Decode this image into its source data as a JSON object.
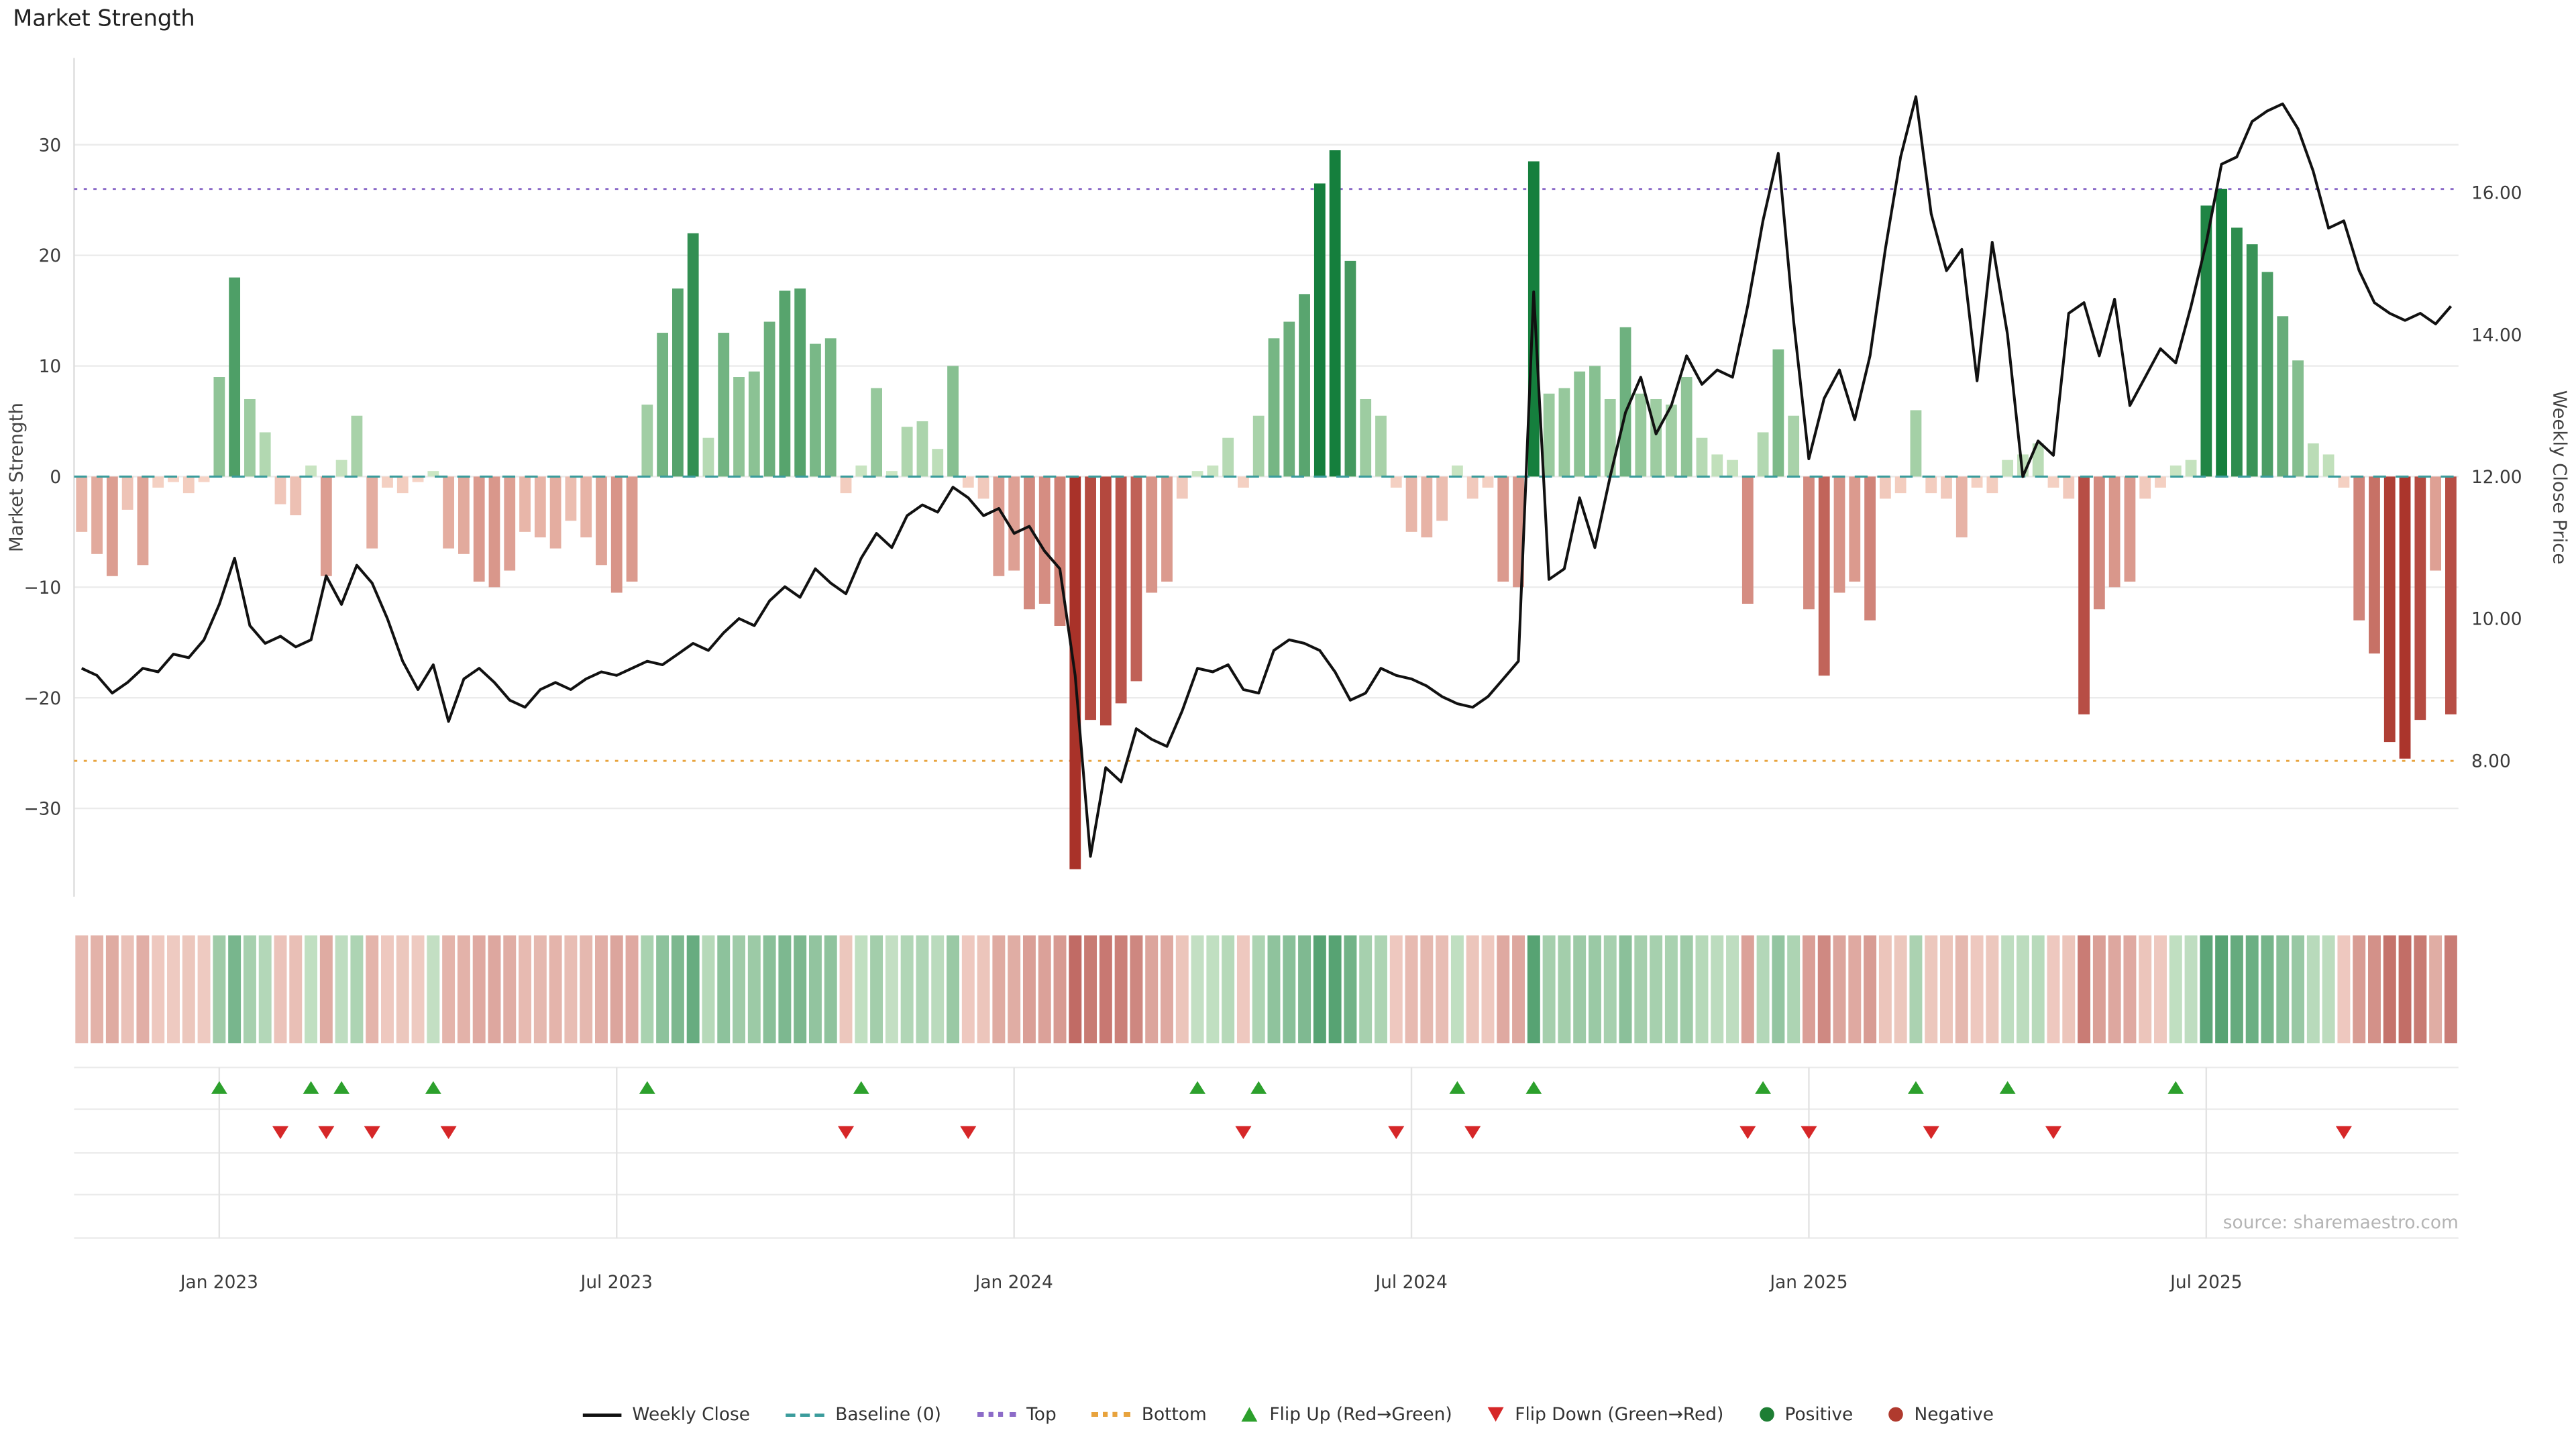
{
  "title": "Market Strength",
  "source": "source: sharemaestro.com",
  "colors": {
    "positive_light": "#cfe8c6",
    "positive_dark": "#157f3d",
    "negative_light": "#f7d6c8",
    "negative_dark": "#a93229",
    "line": "#111111",
    "baseline": "#3b9c9c",
    "top": "#8c6bc8",
    "bottom": "#e8a33d",
    "grid": "#ebebeb",
    "panel_grid": "#e3e3e3",
    "axis_text": "#3b3b3b",
    "source_text": "#b4b4b4",
    "flip_up": "#2ca02c",
    "flip_down": "#d62728"
  },
  "legend": {
    "items": [
      {
        "key": "weekly-close",
        "label": "Weekly Close",
        "swatch": "line",
        "color": "#111111"
      },
      {
        "key": "baseline",
        "label": "Baseline (0)",
        "swatch": "dashed",
        "color": "#3b9c9c"
      },
      {
        "key": "top",
        "label": "Top",
        "swatch": "dotted",
        "color": "#8c6bc8"
      },
      {
        "key": "bottom",
        "label": "Bottom",
        "swatch": "dotted",
        "color": "#e8a33d"
      },
      {
        "key": "flip-up",
        "label": "Flip Up (Red→Green)",
        "swatch": "triangle-up",
        "color": "#2ca02c"
      },
      {
        "key": "flip-down",
        "label": "Flip Down (Green→Red)",
        "swatch": "triangle-down",
        "color": "#d62728"
      },
      {
        "key": "positive",
        "label": "Positive",
        "swatch": "dot",
        "color": "#1e7e34"
      },
      {
        "key": "negative",
        "label": "Negative",
        "swatch": "dot",
        "color": "#b03a2e"
      }
    ]
  },
  "chart_data": {
    "type": "bar+line",
    "title": "Market Strength",
    "n_points": 156,
    "x_unit": "week",
    "x_tick_labels": [
      "Jan 2023",
      "Jul 2023",
      "Jan 2024",
      "Jul 2024",
      "Jan 2025",
      "Jul 2025"
    ],
    "x_tick_positions": [
      9,
      35,
      61,
      87,
      113,
      139
    ],
    "left_axis": {
      "label": "Market Strength",
      "tick_values": [
        30,
        20,
        10,
        0,
        -10,
        -20,
        -30
      ],
      "tick_labels": [
        "30",
        "20",
        "10",
        "0",
        "−10",
        "−20",
        "−30"
      ],
      "range": [
        -38,
        37.8
      ]
    },
    "right_axis": {
      "label": "Weekly Close Price",
      "tick_values": [
        16,
        14,
        12,
        10,
        8
      ],
      "tick_labels": [
        "16.00",
        "14.00",
        "12.00",
        "10.00",
        "8.00"
      ],
      "range": [
        6.1,
        17.9
      ]
    },
    "reference_lines": {
      "baseline": 0,
      "top": 26,
      "bottom": -25.7
    },
    "series": [
      {
        "name": "Market Strength",
        "type": "bar",
        "axis": "left",
        "values": [
          -5,
          -7,
          -9,
          -3,
          -8,
          -1,
          -0.5,
          -1.5,
          -0.5,
          9,
          18,
          7,
          4,
          -2.5,
          -3.5,
          1,
          -9,
          1.5,
          5.5,
          -6.5,
          -1,
          -1.5,
          -0.5,
          0.5,
          -6.5,
          -7,
          -9.5,
          -10,
          -8.5,
          -5,
          -5.5,
          -6.5,
          -4,
          -5.5,
          -8,
          -10.5,
          -9.5,
          6.5,
          13,
          17,
          22,
          3.5,
          13,
          9,
          9.5,
          14,
          16.8,
          17,
          12,
          12.5,
          -1.5,
          1,
          8,
          0.5,
          4.5,
          5,
          2.5,
          10,
          -1,
          -2,
          -9,
          -8.5,
          -12,
          -11.5,
          -13.5,
          -35.5,
          -22,
          -22.5,
          -20.5,
          -18.5,
          -10.5,
          -9.5,
          -2,
          0.5,
          1,
          3.5,
          -1,
          5.5,
          12.5,
          14,
          16.5,
          26.5,
          29.5,
          19.5,
          7,
          5.5,
          -1,
          -5,
          -5.5,
          -4,
          1,
          -2,
          -1,
          -9.5,
          -10,
          28.5,
          7.5,
          8,
          9.5,
          10,
          7,
          13.5,
          7.5,
          7,
          6.5,
          9,
          3.5,
          2,
          1.5,
          -11.5,
          4,
          11.5,
          5.5,
          -12,
          -18,
          -10.5,
          -9.5,
          -13,
          -2,
          -1.5,
          6,
          -1.5,
          -2,
          -5.5,
          -1,
          -1.5,
          1.5,
          2,
          3,
          -1,
          -2,
          -21.5,
          -12,
          -10,
          -9.5,
          -2,
          -1,
          1,
          1.5,
          24.5,
          26,
          22.5,
          21,
          18.5,
          14.5,
          10.5,
          3,
          2,
          -1,
          -13,
          -16,
          -24,
          -25.5,
          -22,
          -8.5,
          -21.5
        ]
      },
      {
        "name": "Weekly Close",
        "type": "line",
        "axis": "right",
        "values": [
          9.3,
          9.2,
          8.95,
          9.1,
          9.3,
          9.25,
          9.5,
          9.45,
          9.7,
          10.2,
          10.85,
          9.9,
          9.65,
          9.75,
          9.6,
          9.7,
          10.6,
          10.2,
          10.75,
          10.5,
          10.0,
          9.4,
          9.0,
          9.35,
          8.55,
          9.15,
          9.3,
          9.1,
          8.85,
          8.75,
          9.0,
          9.1,
          9.0,
          9.15,
          9.25,
          9.2,
          9.3,
          9.4,
          9.35,
          9.5,
          9.65,
          9.55,
          9.8,
          10.0,
          9.9,
          10.25,
          10.45,
          10.3,
          10.7,
          10.5,
          10.35,
          10.85,
          11.2,
          11.0,
          11.45,
          11.6,
          11.5,
          11.85,
          11.7,
          11.45,
          11.55,
          11.2,
          11.3,
          10.95,
          10.7,
          9.2,
          6.65,
          7.9,
          7.7,
          8.45,
          8.3,
          8.2,
          8.7,
          9.3,
          9.25,
          9.35,
          9.0,
          8.95,
          9.55,
          9.7,
          9.65,
          9.55,
          9.25,
          8.85,
          8.95,
          9.3,
          9.2,
          9.15,
          9.05,
          8.9,
          8.8,
          8.75,
          8.9,
          9.15,
          9.4,
          14.6,
          10.55,
          10.7,
          11.7,
          11.0,
          12.0,
          12.9,
          13.4,
          12.6,
          13.0,
          13.7,
          13.3,
          13.5,
          13.4,
          14.4,
          15.6,
          16.55,
          14.2,
          12.25,
          13.1,
          13.5,
          12.8,
          13.7,
          15.2,
          16.5,
          17.35,
          15.7,
          14.9,
          15.2,
          13.35,
          15.3,
          14.0,
          12.0,
          12.5,
          12.3,
          14.3,
          14.45,
          13.7,
          14.5,
          13.0,
          13.4,
          13.8,
          13.6,
          14.4,
          15.3,
          16.4,
          16.5,
          17.0,
          17.15,
          17.25,
          16.9,
          16.3,
          15.5,
          15.6,
          14.9,
          14.45,
          14.3,
          14.2,
          14.3,
          14.15,
          14.4
        ]
      }
    ],
    "flip_up_weeks": [
      9,
      15,
      17,
      23,
      37,
      51,
      73,
      77,
      90,
      95,
      110,
      120,
      126,
      137
    ],
    "flip_down_weeks": [
      13,
      16,
      19,
      24,
      50,
      58,
      76,
      86,
      91,
      109,
      113,
      121,
      129,
      148
    ],
    "heatmap": {
      "description": "weekly strip below main chart; pastel red/green intensity of Market Strength values",
      "source_series": "Market Strength"
    },
    "legend_position": "bottom-center",
    "grid": "horizontal-only"
  }
}
